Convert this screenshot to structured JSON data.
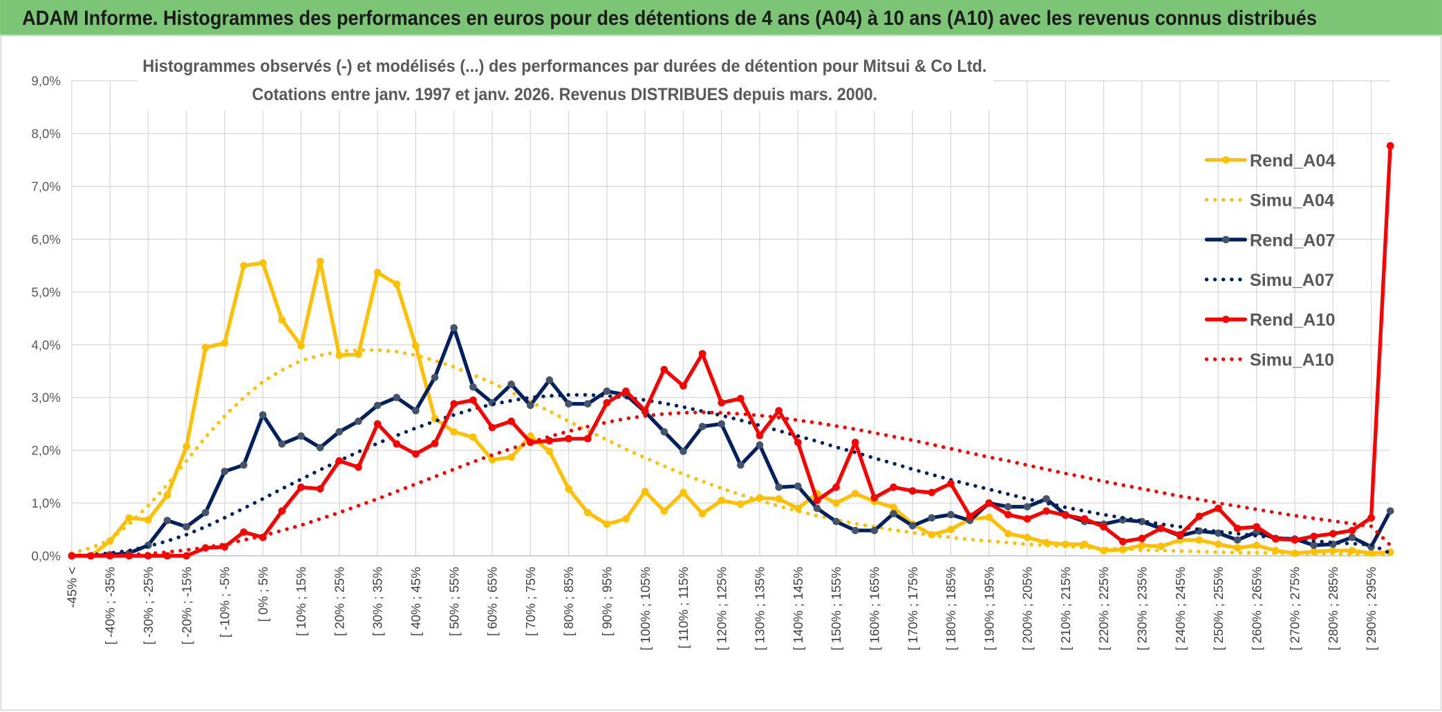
{
  "chart_data": {
    "type": "line",
    "title": "ADAM Informe. Histogrammes des performances en euros pour des détentions de 4 ans (A04) à 10 ans (A10) avec les revenus connus distribués",
    "subtitle": [
      "Histogrammes observés (-) et modélisés (...) des performances par durées de détention pour Mitsui & Co Ltd.",
      "Cotations entre janv. 1997 et janv. 2026. Revenus DISTRIBUES depuis mars. 2000."
    ],
    "categories": [
      "-45% <",
      null,
      "[ -40% ; -35%",
      null,
      "[ -30% ; -25%",
      null,
      "[ -20% ; -15%",
      null,
      "[ -10% ; -5%",
      null,
      "[ 0% ; 5%",
      null,
      "[ 10% ; 15%",
      null,
      "[ 20% ; 25%",
      null,
      "[ 30% ; 35%",
      null,
      "[ 40% ; 45%",
      null,
      "[ 50% ; 55%",
      null,
      "[ 60% ; 65%",
      null,
      "[ 70% ; 75%",
      null,
      "[ 80% ; 85%",
      null,
      "[ 90% ; 95%",
      null,
      "[ 100% ; 105%",
      null,
      "[ 110% ; 115%",
      null,
      "[ 120% ; 125%",
      null,
      "[ 130% ; 135%",
      null,
      "[ 140% ; 145%",
      null,
      "[ 150% ; 155%",
      null,
      "[ 160% ; 165%",
      null,
      "[ 170% ; 175%",
      null,
      "[ 180% ; 185%",
      null,
      "[ 190% ; 195%",
      null,
      "[ 200% ; 205%",
      null,
      "[ 210% ; 215%",
      null,
      "[ 220% ; 225%",
      null,
      "[ 230% ; 235%",
      null,
      "[ 240% ; 245%",
      null,
      "[ 250% ; 255%",
      null,
      "[ 260% ; 265%",
      null,
      "[ 270% ; 275%",
      null,
      "[ 280% ; 285%",
      null,
      "[ 290% ; 295%",
      null
    ],
    "series": [
      {
        "name": "Rend_A04",
        "color": "#ffc000",
        "style": "solid",
        "values": [
          0,
          0,
          0.28,
          0.72,
          0.68,
          1.15,
          2.07,
          3.95,
          4.03,
          5.5,
          5.55,
          4.47,
          3.98,
          5.58,
          3.8,
          3.82,
          5.37,
          5.15,
          3.98,
          2.6,
          2.35,
          2.25,
          1.82,
          1.87,
          2.27,
          1.98,
          1.27,
          0.82,
          0.6,
          0.7,
          1.22,
          0.85,
          1.2,
          0.8,
          1.05,
          0.98,
          1.1,
          1.08,
          0.9,
          1.18,
          1.0,
          1.18,
          1.03,
          0.92,
          0.6,
          0.4,
          0.5,
          0.7,
          0.73,
          0.42,
          0.35,
          0.25,
          0.22,
          0.22,
          0.1,
          0.12,
          0.2,
          0.18,
          0.3,
          0.3,
          0.22,
          0.15,
          0.2,
          0.1,
          0.05,
          0.08,
          0.1,
          0.1,
          0.05,
          0.07
        ]
      },
      {
        "name": "Simu_A04",
        "color": "#ffc000",
        "style": "dotted",
        "values": [
          0.05,
          0.15,
          0.3,
          0.6,
          0.95,
          1.35,
          1.8,
          2.25,
          2.65,
          3.0,
          3.3,
          3.52,
          3.7,
          3.8,
          3.87,
          3.9,
          3.9,
          3.87,
          3.8,
          3.7,
          3.58,
          3.43,
          3.28,
          3.1,
          2.92,
          2.74,
          2.55,
          2.37,
          2.2,
          2.02,
          1.86,
          1.7,
          1.55,
          1.41,
          1.28,
          1.16,
          1.05,
          0.94,
          0.85,
          0.76,
          0.68,
          0.61,
          0.55,
          0.49,
          0.44,
          0.39,
          0.35,
          0.31,
          0.28,
          0.25,
          0.22,
          0.2,
          0.18,
          0.16,
          0.14,
          0.13,
          0.11,
          0.1,
          0.09,
          0.08,
          0.07,
          0.06,
          0.06,
          0.05,
          0.05,
          0.04,
          0.04,
          0.03,
          0.03,
          0.03
        ]
      },
      {
        "name": "Rend_A07",
        "color": "#002060",
        "style": "solid",
        "values": [
          0,
          0,
          0.02,
          0.05,
          0.2,
          0.67,
          0.55,
          0.82,
          1.6,
          1.72,
          2.67,
          2.12,
          2.27,
          2.05,
          2.35,
          2.55,
          2.85,
          3.0,
          2.75,
          3.38,
          4.32,
          3.2,
          2.9,
          3.25,
          2.85,
          3.33,
          2.88,
          2.88,
          3.12,
          3.05,
          2.73,
          2.35,
          1.98,
          2.45,
          2.5,
          1.72,
          2.1,
          1.3,
          1.32,
          0.9,
          0.65,
          0.48,
          0.48,
          0.8,
          0.57,
          0.72,
          0.78,
          0.67,
          1.0,
          0.93,
          0.93,
          1.08,
          0.78,
          0.65,
          0.6,
          0.68,
          0.65,
          0.52,
          0.38,
          0.47,
          0.43,
          0.3,
          0.45,
          0.33,
          0.32,
          0.2,
          0.22,
          0.35,
          0.17,
          0.85
        ]
      },
      {
        "name": "Simu_A07",
        "color": "#002060",
        "style": "dotted",
        "values": [
          0,
          0.02,
          0.05,
          0.1,
          0.18,
          0.28,
          0.4,
          0.55,
          0.72,
          0.9,
          1.08,
          1.27,
          1.45,
          1.63,
          1.8,
          1.97,
          2.13,
          2.28,
          2.42,
          2.55,
          2.67,
          2.78,
          2.87,
          2.94,
          3.0,
          3.03,
          3.05,
          3.05,
          3.03,
          3.0,
          2.95,
          2.89,
          2.82,
          2.74,
          2.66,
          2.57,
          2.47,
          2.37,
          2.27,
          2.17,
          2.06,
          1.96,
          1.85,
          1.75,
          1.64,
          1.54,
          1.44,
          1.35,
          1.26,
          1.17,
          1.08,
          1.0,
          0.92,
          0.85,
          0.78,
          0.72,
          0.66,
          0.6,
          0.55,
          0.5,
          0.46,
          0.42,
          0.38,
          0.34,
          0.31,
          0.28,
          0.25,
          0.23,
          0.21,
          0.05
        ]
      },
      {
        "name": "Rend_A10",
        "color": "#ff0000",
        "style": "solid",
        "values": [
          0,
          0,
          0,
          0,
          0,
          0,
          0,
          0.15,
          0.17,
          0.45,
          0.35,
          0.85,
          1.3,
          1.27,
          1.8,
          1.68,
          2.5,
          2.12,
          1.93,
          2.13,
          2.88,
          2.95,
          2.43,
          2.55,
          2.15,
          2.18,
          2.22,
          2.22,
          2.9,
          3.12,
          2.75,
          3.53,
          3.22,
          3.83,
          2.9,
          2.98,
          2.28,
          2.75,
          2.15,
          1.05,
          1.3,
          2.15,
          1.1,
          1.3,
          1.23,
          1.2,
          1.37,
          0.75,
          1.0,
          0.78,
          0.7,
          0.85,
          0.77,
          0.7,
          0.55,
          0.27,
          0.33,
          0.52,
          0.4,
          0.75,
          0.9,
          0.52,
          0.55,
          0.32,
          0.3,
          0.37,
          0.42,
          0.48,
          0.72,
          7.77
        ]
      },
      {
        "name": "Simu_A10",
        "color": "#ff0000",
        "style": "dotted",
        "values": [
          0,
          0,
          0.01,
          0.02,
          0.04,
          0.07,
          0.11,
          0.16,
          0.22,
          0.3,
          0.38,
          0.48,
          0.58,
          0.7,
          0.82,
          0.95,
          1.08,
          1.22,
          1.36,
          1.5,
          1.64,
          1.78,
          1.91,
          2.03,
          2.15,
          2.26,
          2.36,
          2.45,
          2.53,
          2.6,
          2.65,
          2.69,
          2.71,
          2.72,
          2.71,
          2.69,
          2.66,
          2.62,
          2.57,
          2.52,
          2.46,
          2.4,
          2.33,
          2.26,
          2.19,
          2.11,
          2.03,
          1.95,
          1.87,
          1.8,
          1.72,
          1.64,
          1.56,
          1.49,
          1.41,
          1.34,
          1.27,
          1.2,
          1.13,
          1.07,
          1.0,
          0.94,
          0.88,
          0.82,
          0.76,
          0.71,
          0.66,
          0.61,
          0.56,
          0.2
        ]
      }
    ],
    "ylim": [
      0,
      9
    ],
    "yticks": [
      {
        "value": 0,
        "label": "0,0%"
      },
      {
        "value": 1,
        "label": "1,0%"
      },
      {
        "value": 2,
        "label": "2,0%"
      },
      {
        "value": 3,
        "label": "3,0%"
      },
      {
        "value": 4,
        "label": "4,0%"
      },
      {
        "value": 5,
        "label": "5,0%"
      },
      {
        "value": 6,
        "label": "6,0%"
      },
      {
        "value": 7,
        "label": "7,0%"
      },
      {
        "value": 8,
        "label": "8,0%"
      },
      {
        "value": 9,
        "label": "9,0%"
      }
    ],
    "grid": true,
    "legend": "right"
  }
}
